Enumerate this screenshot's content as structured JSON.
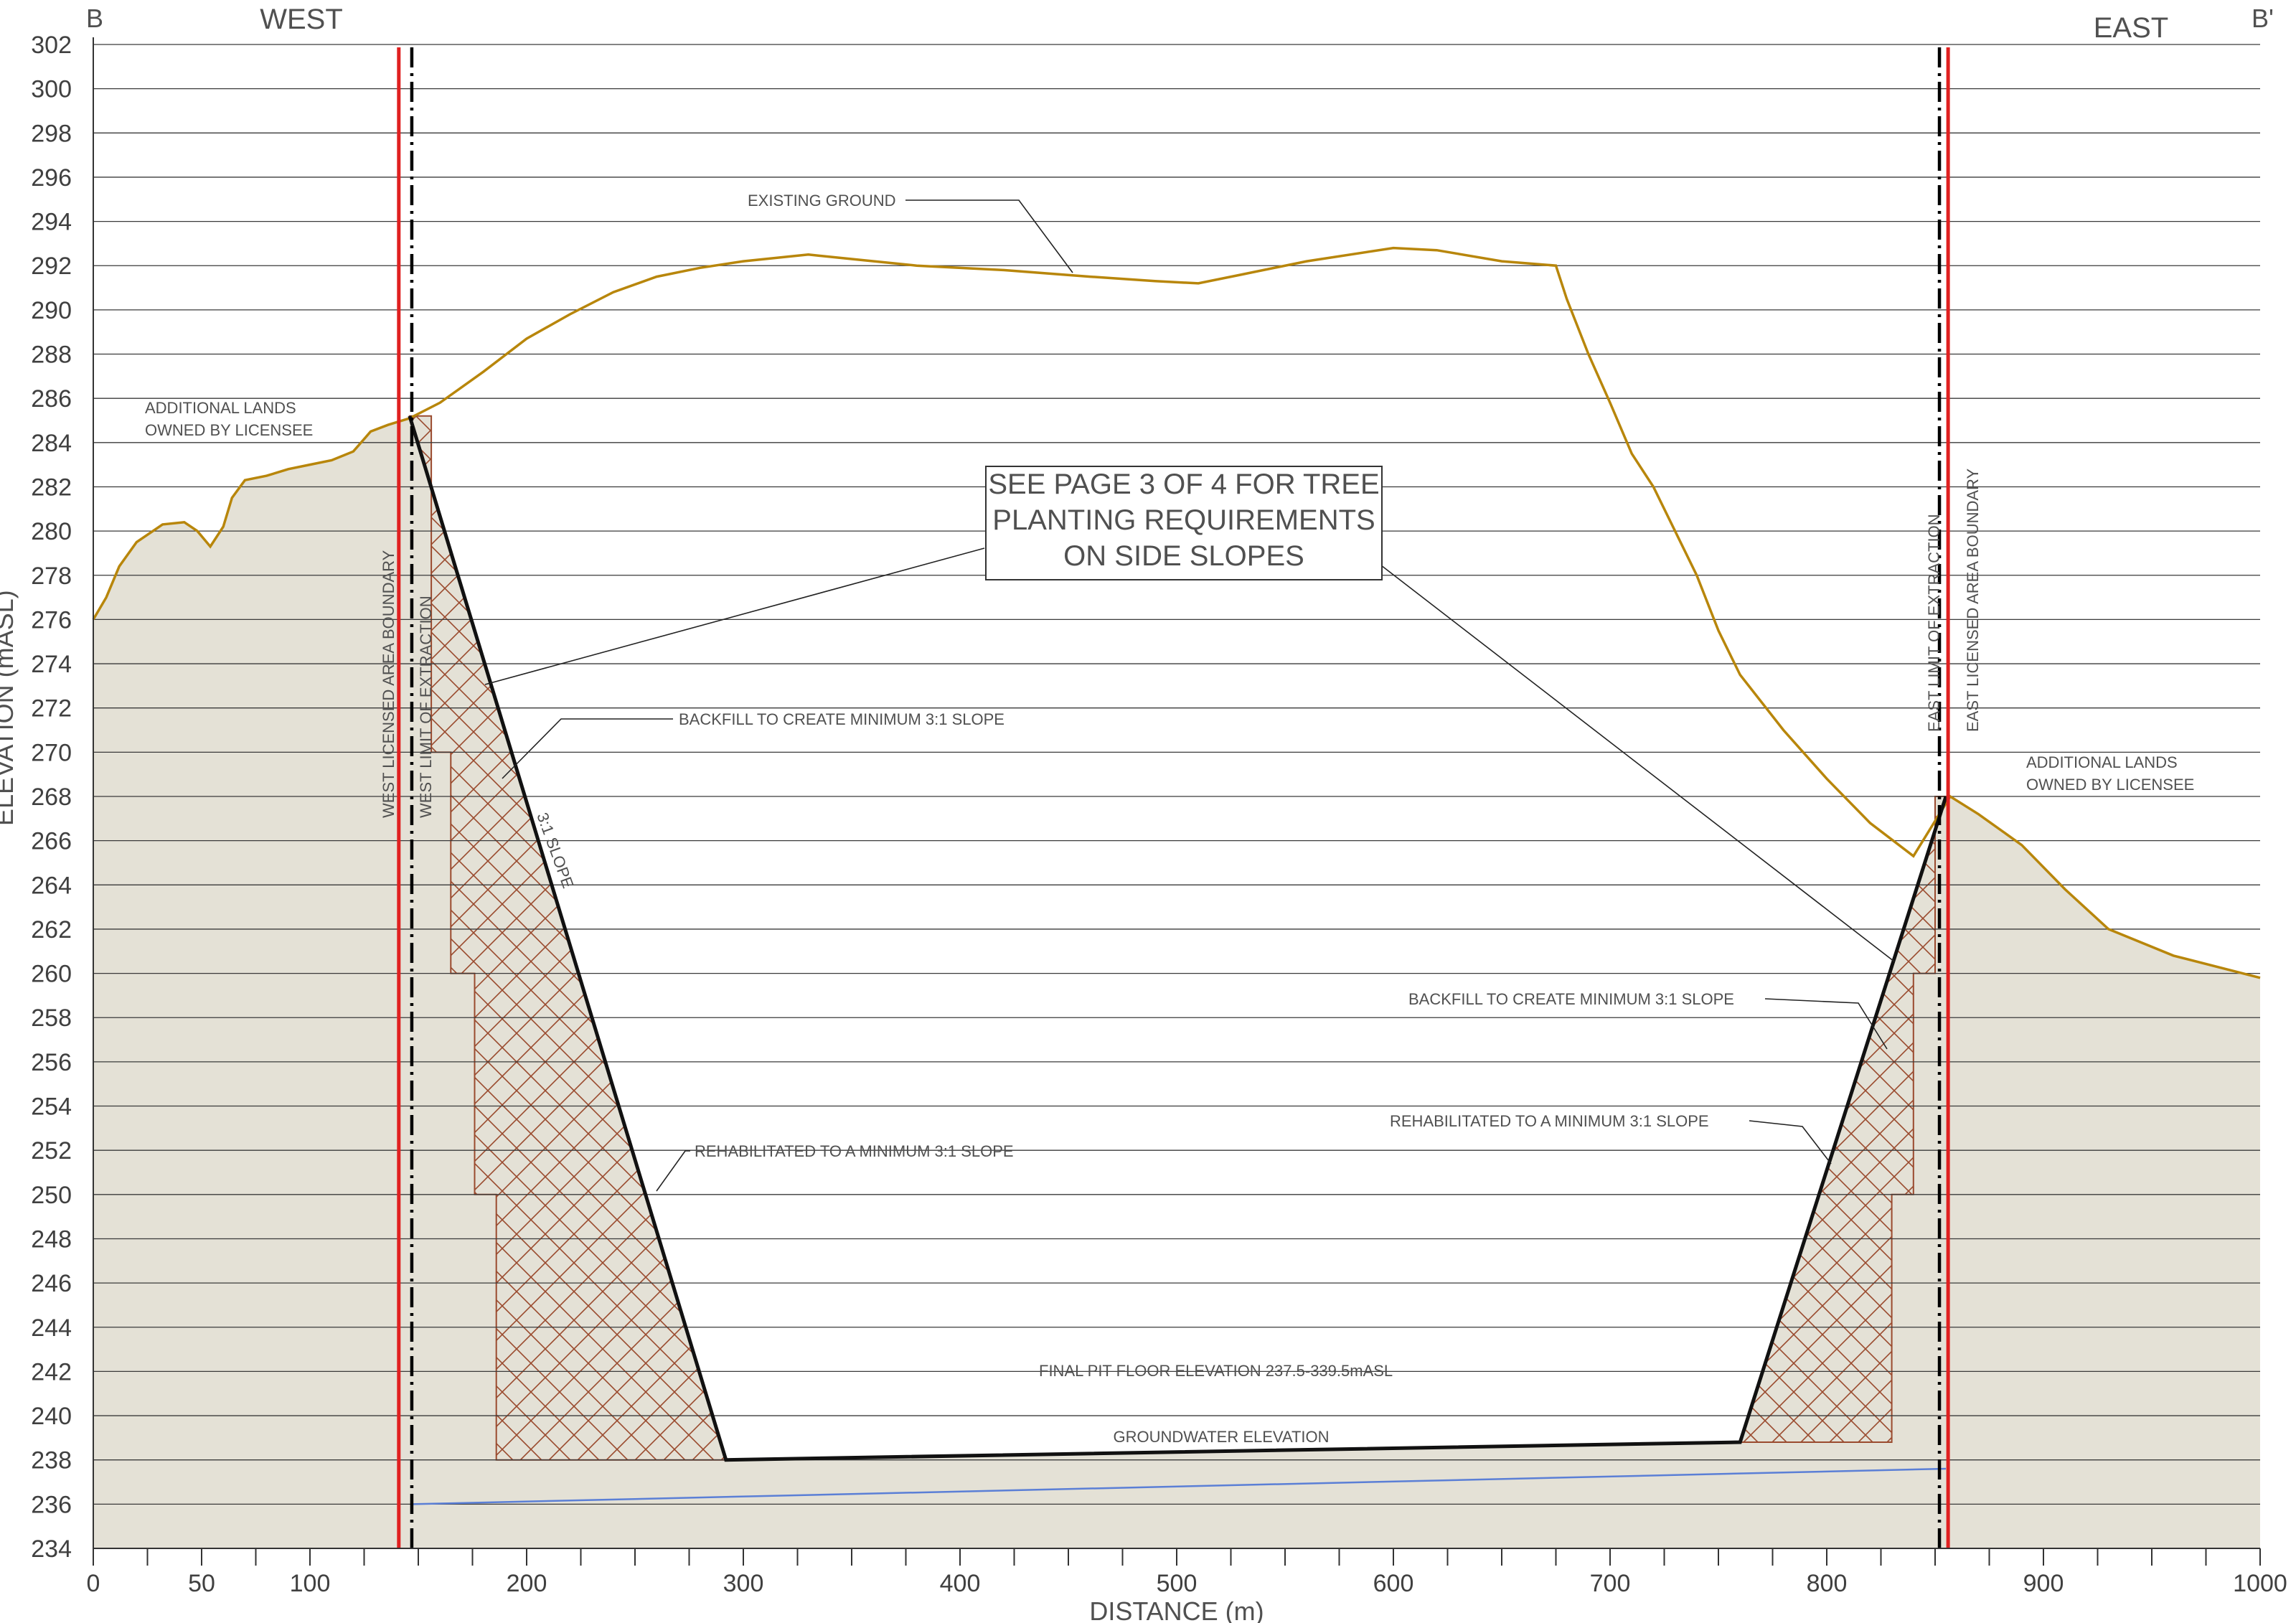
{
  "chart_data": {
    "type": "line",
    "title": "",
    "section_start": "B",
    "section_end": "B'",
    "direction_left": "WEST",
    "direction_right": "EAST",
    "xlabel": "DISTANCE (m)",
    "ylabel": "ELEVATION (mASL)",
    "xlim": [
      0,
      1000
    ],
    "ylim": [
      234,
      302
    ],
    "x_ticks": [
      0,
      50,
      100,
      200,
      300,
      400,
      500,
      600,
      700,
      800,
      900,
      1000
    ],
    "y_ticks": [
      234,
      236,
      238,
      240,
      242,
      244,
      246,
      248,
      250,
      252,
      254,
      256,
      258,
      260,
      262,
      264,
      266,
      268,
      270,
      272,
      274,
      276,
      278,
      280,
      282,
      284,
      286,
      288,
      290,
      292,
      294,
      296,
      298,
      300,
      302
    ],
    "grid": true,
    "colors": {
      "existing_ground": "#b8860b",
      "boundary": "#e02020",
      "extraction_limit": "#000000",
      "groundwater": "#5b7fd6",
      "ground_fill": "#e4e1d6",
      "hatch": "#9a4a2e"
    },
    "series": [
      {
        "name": "EXISTING GROUND",
        "x": [
          0,
          6,
          12,
          20,
          32,
          42,
          48,
          54,
          60,
          64,
          70,
          80,
          90,
          100,
          110,
          120,
          128,
          136,
          146,
          160,
          180,
          200,
          220,
          240,
          260,
          280,
          300,
          330,
          350,
          380,
          420,
          460,
          490,
          510,
          530,
          560,
          600,
          620,
          650,
          675,
          680,
          690,
          700,
          710,
          720,
          740,
          750,
          760,
          780,
          800,
          820,
          840,
          857,
          870,
          890,
          910,
          930,
          960,
          1000
        ],
        "y": [
          276,
          277,
          278.4,
          279.5,
          280.3,
          280.4,
          280,
          279.3,
          280.2,
          281.5,
          282.3,
          282.5,
          282.8,
          283,
          283.2,
          283.6,
          284.5,
          284.8,
          285.1,
          285.8,
          287.2,
          288.7,
          289.8,
          290.8,
          291.5,
          291.9,
          292.2,
          292.5,
          292.3,
          292,
          291.8,
          291.5,
          291.3,
          291.2,
          291.6,
          292.2,
          292.8,
          292.7,
          292.2,
          292,
          290.5,
          288,
          285.8,
          283.5,
          282,
          278,
          275.5,
          273.5,
          271,
          268.8,
          266.8,
          265.3,
          268,
          267.2,
          265.8,
          263.8,
          262,
          260.8,
          259.8
        ]
      },
      {
        "name": "GROUNDWATER ELEVATION",
        "x": [
          147,
          855
        ],
        "y": [
          236,
          237.6
        ]
      }
    ],
    "pit_profile": {
      "x": [
        146,
        292,
        760,
        855
      ],
      "y": [
        285.2,
        238,
        238.8,
        268
      ]
    },
    "backfill_west_steps": {
      "x": [
        146,
        156,
        156,
        165,
        165,
        176,
        176,
        186,
        186
      ],
      "y": [
        285.2,
        285.2,
        270,
        270,
        260,
        260,
        250,
        250,
        238
      ]
    },
    "backfill_east_steps": {
      "x": [
        830,
        830,
        840,
        840,
        850,
        850
      ],
      "y": [
        238.8,
        250,
        250,
        260,
        260,
        268
      ]
    },
    "vertical_lines": {
      "west_boundary_x": 141,
      "west_limit_x": 147,
      "east_limit_x": 852,
      "east_boundary_x": 856
    },
    "annotations": {
      "existing_ground": "EXISTING GROUND",
      "additional_lands_west_1": "ADDITIONAL LANDS",
      "additional_lands_west_2": "OWNED BY LICENSEE",
      "additional_lands_east_1": "ADDITIONAL LANDS",
      "additional_lands_east_2": "OWNED BY LICENSEE",
      "tree_note_1": "SEE PAGE 3 OF 4 FOR TREE",
      "tree_note_2": "PLANTING REQUIREMENTS",
      "tree_note_3": "ON SIDE SLOPES",
      "backfill_west": "BACKFILL TO CREATE MINIMUM 3:1 SLOPE",
      "backfill_east": "BACKFILL TO CREATE MINIMUM 3:1 SLOPE",
      "rehab_west": "REHABILITATED TO A MINIMUM 3:1 SLOPE",
      "rehab_east": "REHABILITATED TO A MINIMUM 3:1 SLOPE",
      "slope": "3:1 SLOPE",
      "west_boundary": "WEST LICENSED AREA BOUNDARY",
      "west_limit": "WEST LIMIT OF EXTRACTION",
      "east_limit": "EAST LIMIT OF EXTRACTION",
      "east_boundary": "EAST LICENSED AREA BOUNDARY",
      "pit_floor": "FINAL PIT FLOOR ELEVATION 237.5-339.5mASL",
      "groundwater": "GROUNDWATER ELEVATION"
    }
  }
}
